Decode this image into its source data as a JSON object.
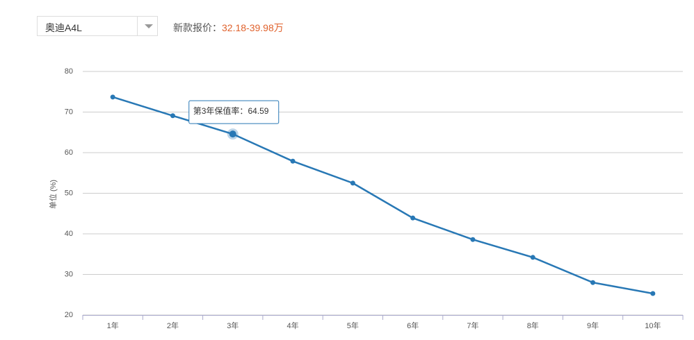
{
  "header": {
    "model": "奥迪A4L",
    "price_label": "新款报价：",
    "price": "32.18-39.98万"
  },
  "chart_data": {
    "type": "line",
    "y_label": "单位 (%)",
    "categories": [
      "1年",
      "2年",
      "3年",
      "4年",
      "5年",
      "6年",
      "7年",
      "8年",
      "9年",
      "10年"
    ],
    "series": [
      {
        "name": "保值率",
        "color": "#2878b5",
        "values": [
          73.7,
          69.1,
          64.59,
          57.9,
          52.5,
          43.9,
          38.6,
          34.2,
          28.0,
          25.3
        ]
      }
    ],
    "ylim": [
      20,
      80
    ],
    "yticks": [
      20,
      30,
      40,
      50,
      60,
      70,
      80
    ],
    "grid": true,
    "tooltip": {
      "label": "第3年保值率：",
      "index": 2
    }
  }
}
